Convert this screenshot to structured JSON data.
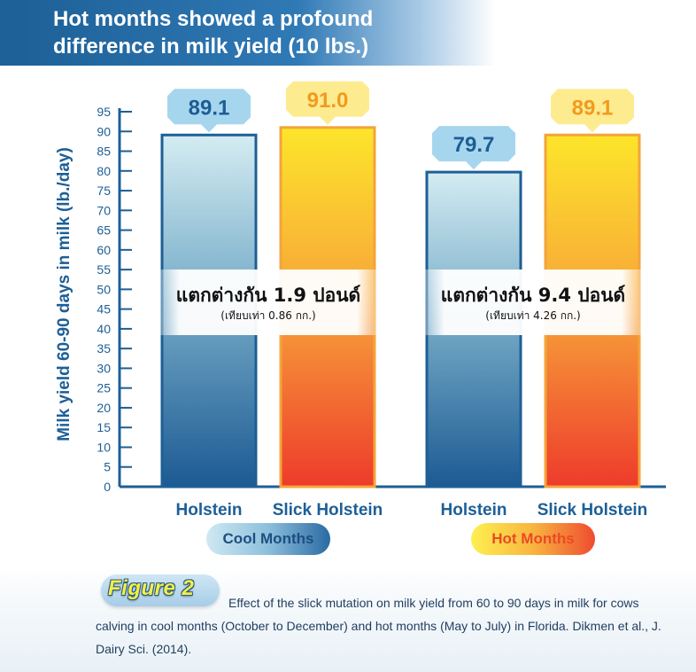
{
  "title_lines": [
    "Hot months showed a profound",
    "difference in milk yield (10 lbs.)"
  ],
  "chart_data": {
    "type": "bar",
    "title": "Hot months showed a profound difference in milk yield (10 lbs.)",
    "ylabel": "Milk yield 60-90 days in milk (lb./day)",
    "xlabel": "",
    "ylim": [
      0,
      95
    ],
    "yticks": [
      0,
      5,
      10,
      15,
      20,
      25,
      30,
      35,
      40,
      45,
      50,
      55,
      60,
      65,
      70,
      75,
      80,
      85,
      90,
      95
    ],
    "groups": [
      {
        "name": "Cool Months",
        "bars": [
          {
            "category": "Holstein",
            "value": 89.1,
            "label": "89.1",
            "style": "blue"
          },
          {
            "category": "Slick Holstein",
            "value": 91.0,
            "label": "91.0",
            "style": "orange"
          }
        ],
        "difference": {
          "text": "แตกต่างกัน 1.9 ปอนด์",
          "subtext": "(เทียบเท่า 0.86 กก.)"
        }
      },
      {
        "name": "Hot Months",
        "bars": [
          {
            "category": "Holstein",
            "value": 79.7,
            "label": "79.7",
            "style": "blue"
          },
          {
            "category": "Slick Holstein",
            "value": 89.1,
            "label": "89.1",
            "style": "orange"
          }
        ],
        "difference": {
          "text": "แตกต่างกัน 9.4 ปอนด์",
          "subtext": "(เทียบเท่า 4.26 กก.)"
        }
      }
    ],
    "grid": false,
    "colors": {
      "axis": "#1d5f96",
      "blue_top": "#d4ecf2",
      "blue_bottom": "#1c5a93",
      "blue_stroke": "#1d5f96",
      "orange_top": "#fde52a",
      "orange_bottom": "#ee3b2b",
      "orange_stroke": "#f3a43b",
      "blue_label_bg": "#a6d6ee",
      "orange_label_bg": "#fdeb90",
      "label_text": "#1e5d94"
    }
  },
  "caption": {
    "figure_label": "Figure 2",
    "text": "Effect of the slick mutation on milk yield from 60 to 90 days in milk for cows calving in cool months (October to December) and hot months (May to July) in Florida. Dikmen et al., J. Dairy Sci. (2014)."
  }
}
